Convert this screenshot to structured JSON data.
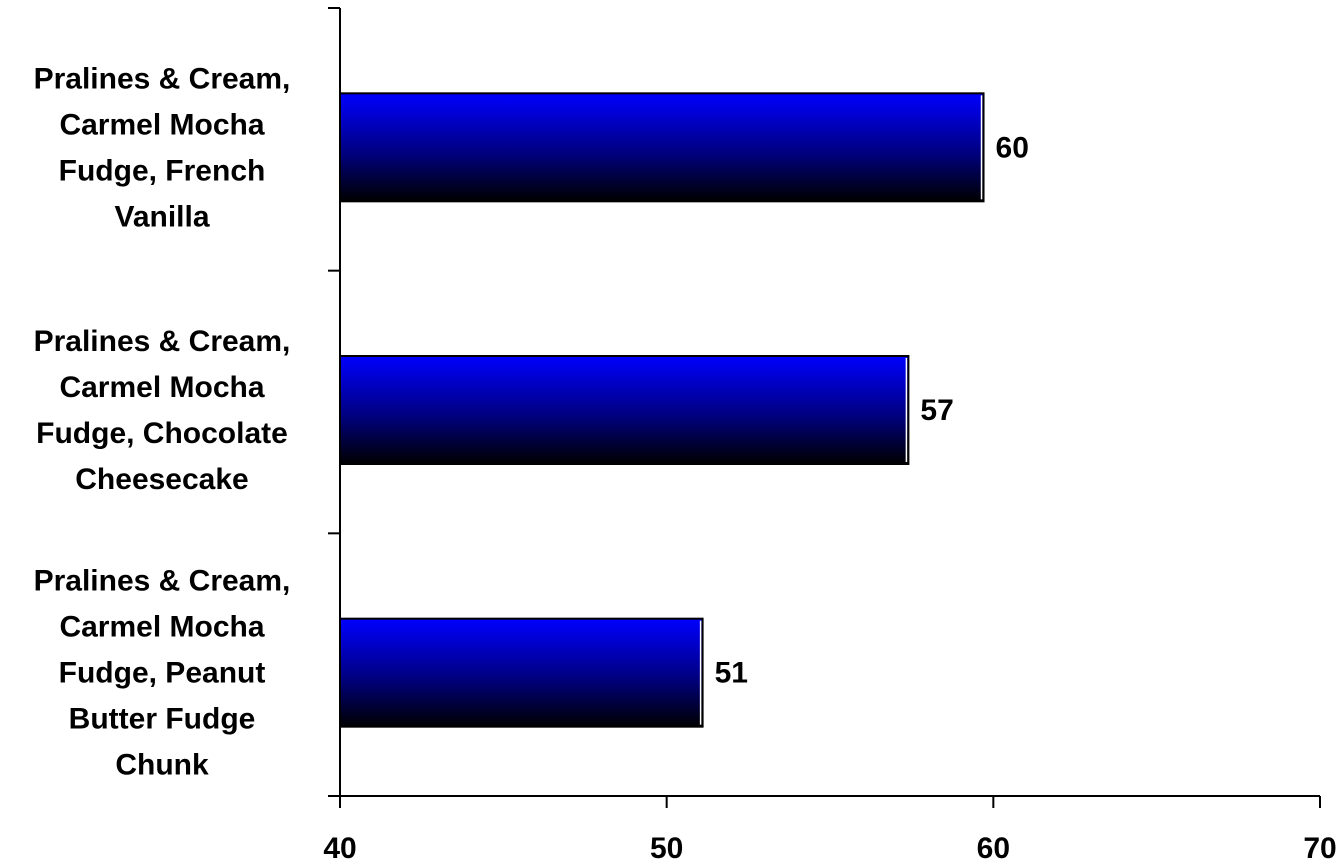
{
  "chart_data": {
    "type": "bar",
    "orientation": "horizontal",
    "title": "",
    "xlabel": "",
    "ylabel": "",
    "categories": [
      [
        "Pralines & Cream,",
        "Carmel Mocha",
        "Fudge, French",
        "Vanilla"
      ],
      [
        "Pralines & Cream,",
        "Carmel Mocha",
        "Fudge, Chocolate",
        "Cheesecake"
      ],
      [
        "Pralines & Cream,",
        "Carmel Mocha",
        "Fudge, Peanut",
        "Butter Fudge",
        "Chunk"
      ]
    ],
    "values": [
      59.7,
      57.4,
      51.1
    ],
    "data_labels": [
      "60",
      "57",
      "51"
    ],
    "xlim": [
      40,
      70
    ],
    "xticks": [
      40,
      50,
      60,
      70
    ],
    "xtick_labels": [
      "40",
      "50",
      "60",
      "70"
    ],
    "grid": false,
    "legend": "none",
    "bar_gradient": {
      "top": "#0000ff",
      "middle": "#000080",
      "bottom": "#000000"
    }
  }
}
